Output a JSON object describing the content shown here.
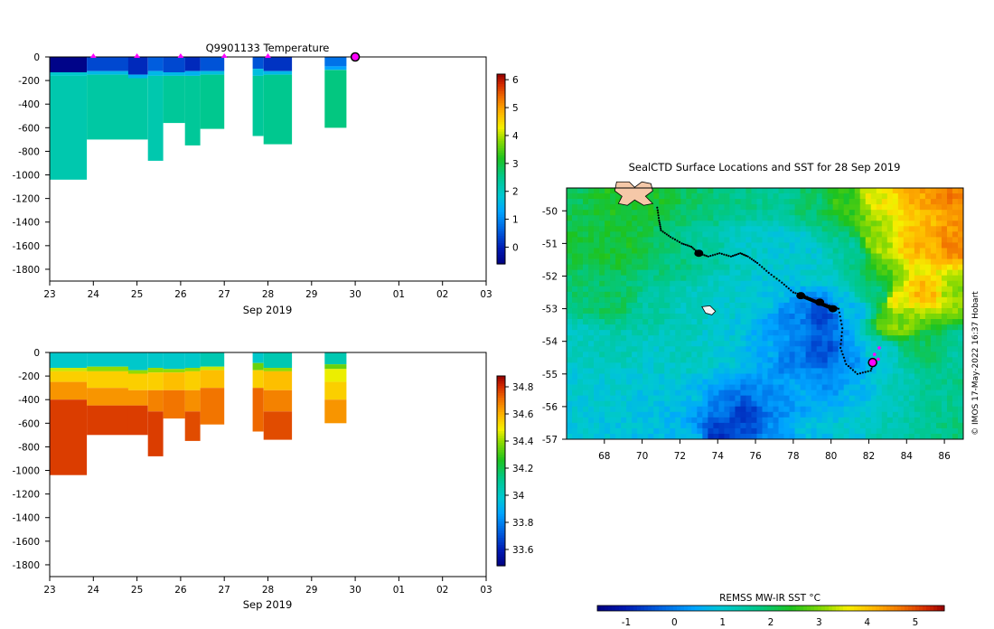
{
  "chart_data": [
    {
      "type": "heatmap",
      "title": "Q9901133  Temperature",
      "xlabel": "Sep 2019",
      "ylabel": "",
      "xlim": [
        23,
        33
      ],
      "ylim": [
        -1900,
        0
      ],
      "xtick_labels": [
        "23",
        "24",
        "25",
        "26",
        "27",
        "28",
        "29",
        "30",
        "01",
        "02",
        "03"
      ],
      "ytick_values": [
        0,
        -200,
        -400,
        -600,
        -800,
        -1000,
        -1200,
        -1400,
        -1600,
        -1800
      ],
      "markers_x": [
        24,
        25,
        26,
        27,
        28
      ],
      "current_position_x": 30,
      "colorbar": {
        "min": -0.6,
        "max": 6.2,
        "ticks": [
          0,
          1,
          2,
          3,
          4,
          5,
          6
        ]
      },
      "profiles": [
        {
          "x0": 23.0,
          "x1": 23.85,
          "layers": [
            [
              0,
              -130,
              -0.5
            ],
            [
              -130,
              -160,
              1.9
            ],
            [
              -160,
              -1040,
              2.2
            ]
          ]
        },
        {
          "x0": 23.85,
          "x1": 24.8,
          "layers": [
            [
              0,
              -120,
              0.4
            ],
            [
              -120,
              -150,
              1.6
            ],
            [
              -150,
              -700,
              2.3
            ]
          ]
        },
        {
          "x0": 24.8,
          "x1": 25.25,
          "layers": [
            [
              0,
              -150,
              0.1
            ],
            [
              -150,
              -180,
              1.5
            ],
            [
              -180,
              -700,
              2.3
            ]
          ]
        },
        {
          "x0": 25.25,
          "x1": 25.6,
          "layers": [
            [
              0,
              -120,
              0.6
            ],
            [
              -120,
              -160,
              1.6
            ],
            [
              -160,
              -880,
              2.2
            ]
          ]
        },
        {
          "x0": 25.6,
          "x1": 26.1,
          "layers": [
            [
              0,
              -130,
              0.4
            ],
            [
              -130,
              -160,
              1.6
            ],
            [
              -160,
              -560,
              2.4
            ]
          ]
        },
        {
          "x0": 26.1,
          "x1": 26.45,
          "layers": [
            [
              0,
              -120,
              0.1
            ],
            [
              -120,
              -160,
              1.5
            ],
            [
              -160,
              -750,
              2.4
            ]
          ]
        },
        {
          "x0": 26.45,
          "x1": 27.0,
          "layers": [
            [
              0,
              -120,
              0.5
            ],
            [
              -120,
              -150,
              1.7
            ],
            [
              -150,
              -610,
              2.5
            ]
          ]
        },
        {
          "x0": 27.65,
          "x1": 27.9,
          "layers": [
            [
              0,
              -100,
              0.5
            ],
            [
              -100,
              -160,
              1.7
            ],
            [
              -160,
              -670,
              2.4
            ]
          ]
        },
        {
          "x0": 27.9,
          "x1": 28.55,
          "layers": [
            [
              0,
              -120,
              0.2
            ],
            [
              -120,
              -150,
              1.6
            ],
            [
              -150,
              -740,
              2.5
            ]
          ]
        },
        {
          "x0": 29.3,
          "x1": 29.8,
          "layers": [
            [
              0,
              -80,
              0.8
            ],
            [
              -80,
              -110,
              1.3
            ],
            [
              -110,
              -600,
              2.6
            ]
          ]
        }
      ]
    },
    {
      "type": "heatmap",
      "title": "",
      "xlabel": "Sep 2019",
      "ylabel": "",
      "xlim": [
        23,
        33
      ],
      "ylim": [
        -1900,
        0
      ],
      "xtick_labels": [
        "23",
        "24",
        "25",
        "26",
        "27",
        "28",
        "29",
        "30",
        "01",
        "02",
        "03"
      ],
      "ytick_values": [
        0,
        -200,
        -400,
        -600,
        -800,
        -1000,
        -1200,
        -1400,
        -1600,
        -1800
      ],
      "colorbar": {
        "min": 33.48,
        "max": 34.88,
        "ticks": [
          33.6,
          33.8,
          34,
          34.2,
          34.4,
          34.6,
          34.8
        ],
        "tick_labels": [
          "33.6",
          "33.8",
          "34",
          "34.2",
          "34.4",
          "34.6",
          "34.8"
        ]
      },
      "profiles": [
        {
          "x0": 23.0,
          "x1": 23.85,
          "layers": [
            [
              0,
              -130,
              34.0
            ],
            [
              -130,
              -160,
              34.45
            ],
            [
              -160,
              -250,
              34.55
            ],
            [
              -250,
              -400,
              34.65
            ],
            [
              -400,
              -1040,
              34.78
            ]
          ]
        },
        {
          "x0": 23.85,
          "x1": 24.8,
          "layers": [
            [
              0,
              -120,
              34.0
            ],
            [
              -120,
              -160,
              34.4
            ],
            [
              -160,
              -300,
              34.55
            ],
            [
              -300,
              -450,
              34.65
            ],
            [
              -450,
              -700,
              34.78
            ]
          ]
        },
        {
          "x0": 24.8,
          "x1": 25.25,
          "layers": [
            [
              0,
              -150,
              34.0
            ],
            [
              -150,
              -180,
              34.4
            ],
            [
              -180,
              -320,
              34.55
            ],
            [
              -320,
              -450,
              34.65
            ],
            [
              -450,
              -700,
              34.78
            ]
          ]
        },
        {
          "x0": 25.25,
          "x1": 25.6,
          "layers": [
            [
              0,
              -130,
              34.0
            ],
            [
              -130,
              -170,
              34.4
            ],
            [
              -170,
              -320,
              34.55
            ],
            [
              -320,
              -500,
              34.68
            ],
            [
              -500,
              -880,
              34.78
            ]
          ]
        },
        {
          "x0": 25.6,
          "x1": 26.1,
          "layers": [
            [
              0,
              -140,
              34.0
            ],
            [
              -140,
              -170,
              34.4
            ],
            [
              -170,
              -320,
              34.58
            ],
            [
              -320,
              -560,
              34.7
            ]
          ]
        },
        {
          "x0": 26.1,
          "x1": 26.45,
          "layers": [
            [
              0,
              -130,
              34.0
            ],
            [
              -130,
              -160,
              34.4
            ],
            [
              -160,
              -320,
              34.55
            ],
            [
              -320,
              -500,
              34.66
            ],
            [
              -500,
              -750,
              34.76
            ]
          ]
        },
        {
          "x0": 26.45,
          "x1": 27.0,
          "layers": [
            [
              0,
              -120,
              34.05
            ],
            [
              -120,
              -150,
              34.45
            ],
            [
              -150,
              -300,
              34.58
            ],
            [
              -300,
              -610,
              34.7
            ]
          ]
        },
        {
          "x0": 27.65,
          "x1": 27.9,
          "layers": [
            [
              0,
              -90,
              34.0
            ],
            [
              -90,
              -150,
              34.35
            ],
            [
              -150,
              -300,
              34.55
            ],
            [
              -300,
              -670,
              34.72
            ]
          ]
        },
        {
          "x0": 27.9,
          "x1": 28.55,
          "layers": [
            [
              0,
              -130,
              34.05
            ],
            [
              -130,
              -160,
              34.4
            ],
            [
              -160,
              -320,
              34.58
            ],
            [
              -320,
              -500,
              34.68
            ],
            [
              -500,
              -740,
              34.76
            ]
          ]
        },
        {
          "x0": 29.3,
          "x1": 29.8,
          "layers": [
            [
              0,
              -100,
              34.05
            ],
            [
              -100,
              -140,
              34.35
            ],
            [
              -140,
              -250,
              34.48
            ],
            [
              -250,
              -400,
              34.55
            ],
            [
              -400,
              -600,
              34.65
            ]
          ]
        }
      ]
    },
    {
      "type": "heatmap",
      "title": "SealCTD Surface Locations and SST for 28 Sep 2019",
      "xlim": [
        66.0,
        87.0
      ],
      "ylim": [
        -57.0,
        -49.3
      ],
      "xtick_labels": [
        "68",
        "70",
        "72",
        "74",
        "76",
        "78",
        "80",
        "82",
        "84",
        "86"
      ],
      "xtick_values": [
        68,
        70,
        72,
        74,
        76,
        78,
        80,
        82,
        84,
        86
      ],
      "ytick_labels": [
        "-50",
        "-51",
        "-52",
        "-53",
        "-54",
        "-55",
        "-56",
        "-57"
      ],
      "ytick_values": [
        -50,
        -51,
        -52,
        -53,
        -54,
        -55,
        -56,
        -57
      ],
      "track": [
        [
          70.8,
          -49.9
        ],
        [
          70.9,
          -50.3
        ],
        [
          71.0,
          -50.6
        ],
        [
          71.5,
          -50.8
        ],
        [
          72.1,
          -51.0
        ],
        [
          72.6,
          -51.1
        ],
        [
          73.0,
          -51.3
        ],
        [
          73.5,
          -51.4
        ],
        [
          74.1,
          -51.3
        ],
        [
          74.7,
          -51.4
        ],
        [
          75.2,
          -51.3
        ],
        [
          75.6,
          -51.4
        ],
        [
          76.1,
          -51.6
        ],
        [
          76.7,
          -51.9
        ],
        [
          77.4,
          -52.2
        ],
        [
          78.0,
          -52.5
        ],
        [
          78.6,
          -52.6
        ],
        [
          79.3,
          -52.8
        ],
        [
          79.9,
          -52.9
        ],
        [
          80.4,
          -53.0
        ],
        [
          80.6,
          -53.6
        ],
        [
          80.5,
          -54.2
        ],
        [
          80.8,
          -54.7
        ],
        [
          81.4,
          -55.0
        ],
        [
          82.1,
          -54.9
        ],
        [
          82.3,
          -54.6
        ]
      ],
      "dense_clusters": [
        [
          73.0,
          -51.3
        ],
        [
          78.4,
          -52.6
        ],
        [
          79.4,
          -52.8
        ],
        [
          80.1,
          -53.0
        ]
      ],
      "current_location": [
        82.2,
        -54.65
      ],
      "recent_locations": [
        [
          82.3,
          -54.4
        ],
        [
          82.55,
          -54.2
        ],
        [
          82.5,
          -54.55
        ]
      ],
      "colorbar": {
        "label": "REMSS MW-IR SST °C",
        "min": -1.6,
        "max": 5.6,
        "ticks": [
          -1,
          0,
          1,
          2,
          3,
          4,
          5
        ],
        "tick_labels": [
          "-1",
          "0",
          "1",
          "2",
          "3",
          "4",
          "5"
        ]
      },
      "sst_anchors": [
        [
          66.0,
          -49.5,
          2.0
        ],
        [
          68.5,
          -49.6,
          2.4
        ],
        [
          71.0,
          -49.6,
          2.3
        ],
        [
          73.0,
          -49.7,
          1.9
        ],
        [
          75.0,
          -49.7,
          1.7
        ],
        [
          77.0,
          -49.7,
          1.6
        ],
        [
          79.0,
          -49.7,
          1.9
        ],
        [
          80.5,
          -49.6,
          2.5
        ],
        [
          82.5,
          -49.5,
          3.6
        ],
        [
          84.5,
          -49.4,
          4.3
        ],
        [
          86.5,
          -49.4,
          4.6
        ],
        [
          66.5,
          -51.0,
          2.2
        ],
        [
          69.0,
          -51.2,
          2.3
        ],
        [
          71.5,
          -51.5,
          1.8
        ],
        [
          73.5,
          -51.2,
          1.5
        ],
        [
          75.5,
          -51.0,
          1.1
        ],
        [
          77.5,
          -51.0,
          1.0
        ],
        [
          79.0,
          -51.5,
          1.0
        ],
        [
          81.0,
          -51.2,
          1.5
        ],
        [
          82.5,
          -51.0,
          3.2
        ],
        [
          84.5,
          -51.0,
          4.1
        ],
        [
          86.5,
          -51.0,
          4.5
        ],
        [
          66.5,
          -52.5,
          1.9
        ],
        [
          68.5,
          -52.8,
          2.0
        ],
        [
          70.5,
          -53.0,
          1.5
        ],
        [
          72.5,
          -53.0,
          1.2
        ],
        [
          74.5,
          -52.7,
          1.1
        ],
        [
          76.5,
          -52.8,
          0.9
        ],
        [
          78.0,
          -53.2,
          0.1
        ],
        [
          79.5,
          -53.2,
          -0.5
        ],
        [
          81.0,
          -53.0,
          0.7
        ],
        [
          82.5,
          -52.6,
          1.8
        ],
        [
          83.5,
          -52.7,
          3.6
        ],
        [
          85.0,
          -52.5,
          4.1
        ],
        [
          86.5,
          -52.5,
          3.1
        ],
        [
          66.5,
          -54.0,
          1.2
        ],
        [
          68.5,
          -54.3,
          1.3
        ],
        [
          70.5,
          -54.5,
          1.1
        ],
        [
          72.5,
          -54.5,
          1.2
        ],
        [
          74.5,
          -54.2,
          1.0
        ],
        [
          76.5,
          -54.3,
          0.5
        ],
        [
          78.0,
          -54.5,
          0.0
        ],
        [
          79.5,
          -54.3,
          -0.5
        ],
        [
          81.0,
          -54.5,
          0.2
        ],
        [
          82.5,
          -54.3,
          1.1
        ],
        [
          83.5,
          -53.5,
          3.0
        ],
        [
          85.0,
          -54.2,
          2.0
        ],
        [
          86.8,
          -54.3,
          1.5
        ],
        [
          66.5,
          -55.5,
          1.0
        ],
        [
          68.5,
          -55.8,
          1.0
        ],
        [
          70.5,
          -55.6,
          0.9
        ],
        [
          72.5,
          -55.8,
          0.8
        ],
        [
          74.0,
          -56.0,
          0.0
        ],
        [
          75.5,
          -56.2,
          -0.6
        ],
        [
          77.0,
          -55.8,
          0.2
        ],
        [
          78.5,
          -55.5,
          0.5
        ],
        [
          80.0,
          -55.3,
          0.2
        ],
        [
          81.5,
          -55.5,
          0.7
        ],
        [
          83.5,
          -55.5,
          1.3
        ],
        [
          85.5,
          -55.7,
          1.6
        ],
        [
          86.8,
          -55.5,
          1.7
        ],
        [
          66.5,
          -57.0,
          1.0
        ],
        [
          68.5,
          -56.9,
          0.9
        ],
        [
          70.5,
          -56.8,
          0.8
        ],
        [
          72.5,
          -56.9,
          0.7
        ],
        [
          74.0,
          -56.8,
          -0.7
        ],
        [
          75.5,
          -56.8,
          -0.5
        ],
        [
          77.0,
          -56.8,
          0.3
        ],
        [
          79.0,
          -56.8,
          0.8
        ],
        [
          81.0,
          -56.8,
          1.0
        ],
        [
          83.0,
          -56.8,
          1.3
        ],
        [
          85.0,
          -56.8,
          1.6
        ],
        [
          86.8,
          -56.8,
          1.8
        ]
      ],
      "islands": [
        {
          "name": "Kerguelen",
          "center": [
            69.7,
            -49.5
          ],
          "land_color": "#f5c8a8"
        },
        {
          "name": "Heard",
          "center": [
            73.5,
            -53.05
          ],
          "land_color": "#f4f4f4"
        }
      ]
    }
  ],
  "credit": "© IMOS 17-May-2022 16:37 Hobart",
  "colors": {
    "marker_magenta": "#ff00ff",
    "track_black": "#000000",
    "land": "#f5c8a8"
  }
}
